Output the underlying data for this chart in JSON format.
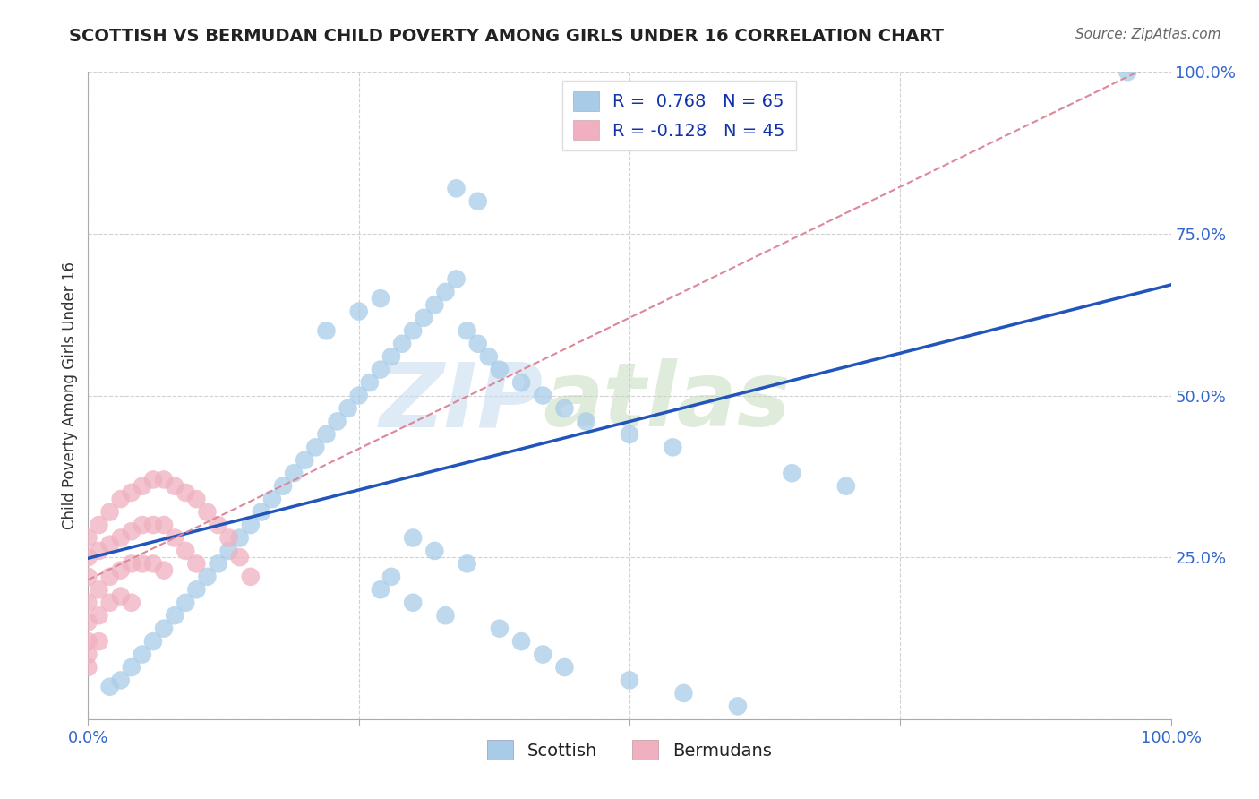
{
  "title": "SCOTTISH VS BERMUDAN CHILD POVERTY AMONG GIRLS UNDER 16 CORRELATION CHART",
  "source": "Source: ZipAtlas.com",
  "ylabel": "Child Poverty Among Girls Under 16",
  "watermark_zip": "ZIP",
  "watermark_atlas": "atlas",
  "xlim": [
    0.0,
    1.0
  ],
  "ylim": [
    0.0,
    1.0
  ],
  "scottish_R": 0.768,
  "scottish_N": 65,
  "bermudan_R": -0.128,
  "bermudan_N": 45,
  "scottish_color": "#a8cce8",
  "bermudan_color": "#f0b0c0",
  "regression_blue": "#2255bb",
  "regression_pink": "#dd8899",
  "scottish_x": [
    0.02,
    0.03,
    0.04,
    0.05,
    0.06,
    0.07,
    0.08,
    0.09,
    0.1,
    0.11,
    0.12,
    0.13,
    0.14,
    0.15,
    0.16,
    0.17,
    0.18,
    0.19,
    0.2,
    0.21,
    0.22,
    0.23,
    0.24,
    0.25,
    0.26,
    0.27,
    0.28,
    0.29,
    0.3,
    0.31,
    0.32,
    0.33,
    0.34,
    0.35,
    0.36,
    0.37,
    0.38,
    0.4,
    0.42,
    0.44,
    0.46,
    0.5,
    0.54,
    0.3,
    0.32,
    0.35,
    0.28,
    0.27,
    0.3,
    0.33,
    0.38,
    0.4,
    0.42,
    0.44,
    0.5,
    0.55,
    0.6,
    0.65,
    0.7,
    0.96,
    0.36,
    0.34,
    0.27,
    0.25,
    0.22
  ],
  "scottish_y": [
    0.05,
    0.06,
    0.08,
    0.1,
    0.12,
    0.14,
    0.16,
    0.18,
    0.2,
    0.22,
    0.24,
    0.26,
    0.28,
    0.3,
    0.32,
    0.34,
    0.36,
    0.38,
    0.4,
    0.42,
    0.44,
    0.46,
    0.48,
    0.5,
    0.52,
    0.54,
    0.56,
    0.58,
    0.6,
    0.62,
    0.64,
    0.66,
    0.68,
    0.6,
    0.58,
    0.56,
    0.54,
    0.52,
    0.5,
    0.48,
    0.46,
    0.44,
    0.42,
    0.28,
    0.26,
    0.24,
    0.22,
    0.2,
    0.18,
    0.16,
    0.14,
    0.12,
    0.1,
    0.08,
    0.06,
    0.04,
    0.02,
    0.38,
    0.36,
    1.0,
    0.8,
    0.82,
    0.65,
    0.63,
    0.6
  ],
  "bermudan_x": [
    0.0,
    0.0,
    0.0,
    0.0,
    0.0,
    0.0,
    0.0,
    0.0,
    0.01,
    0.01,
    0.01,
    0.01,
    0.01,
    0.02,
    0.02,
    0.02,
    0.02,
    0.03,
    0.03,
    0.03,
    0.03,
    0.04,
    0.04,
    0.04,
    0.04,
    0.05,
    0.05,
    0.05,
    0.06,
    0.06,
    0.06,
    0.07,
    0.07,
    0.07,
    0.08,
    0.08,
    0.09,
    0.09,
    0.1,
    0.1,
    0.11,
    0.12,
    0.13,
    0.14,
    0.15
  ],
  "bermudan_y": [
    0.28,
    0.25,
    0.22,
    0.18,
    0.15,
    0.12,
    0.1,
    0.08,
    0.3,
    0.26,
    0.2,
    0.16,
    0.12,
    0.32,
    0.27,
    0.22,
    0.18,
    0.34,
    0.28,
    0.23,
    0.19,
    0.35,
    0.29,
    0.24,
    0.18,
    0.36,
    0.3,
    0.24,
    0.37,
    0.3,
    0.24,
    0.37,
    0.3,
    0.23,
    0.36,
    0.28,
    0.35,
    0.26,
    0.34,
    0.24,
    0.32,
    0.3,
    0.28,
    0.25,
    0.22
  ],
  "xtick_positions": [
    0.0,
    0.25,
    0.5,
    0.75,
    1.0
  ],
  "ytick_positions": [
    0.0,
    0.25,
    0.5,
    0.75,
    1.0
  ],
  "title_fontsize": 14,
  "source_fontsize": 11,
  "tick_fontsize": 13,
  "ylabel_fontsize": 12,
  "tick_color": "#3366cc",
  "title_color": "#222222",
  "source_color": "#666666",
  "ylabel_color": "#333333",
  "grid_color": "#cccccc",
  "watermark_color_zip": "#c8ddf0",
  "watermark_color_atlas": "#c8ddf0"
}
